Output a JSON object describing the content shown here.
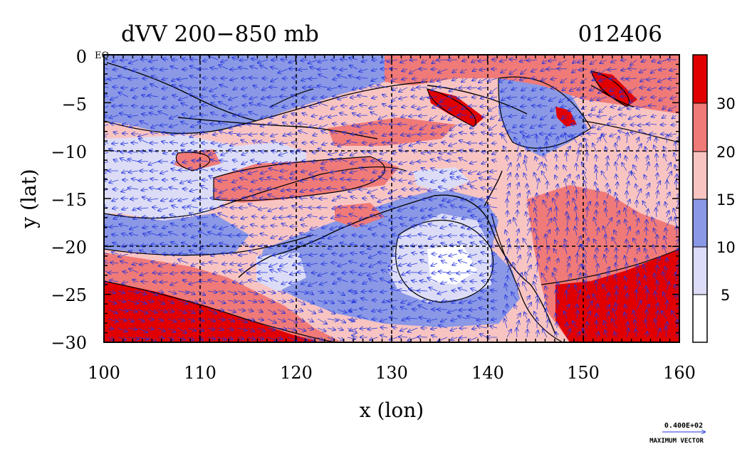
{
  "title": {
    "left": "dVV 200−850 mb",
    "right": "012406"
  },
  "axes": {
    "x_label": "x (lon)",
    "y_label": "y (lat)",
    "x_ticks": [
      "100",
      "110",
      "120",
      "130",
      "140",
      "150",
      "160"
    ],
    "y_ticks": [
      "0",
      "−5",
      "−10",
      "−15",
      "−20",
      "−25",
      "−30"
    ],
    "x_range": [
      100,
      160
    ],
    "y_range": [
      -30,
      0
    ]
  },
  "corner_label": "EQ",
  "colorbar": {
    "labels": [
      "30",
      "20",
      "15",
      "10",
      "5"
    ],
    "colors": [
      "#e00000",
      "#f07a78",
      "#f8c4c2",
      "#8a98e6",
      "#dcdcf6",
      "#ffffff"
    ]
  },
  "vector_key": {
    "value": "0.400E+02",
    "caption": "MAXIMUM VECTOR"
  },
  "colors": {
    "vector": "#2233dd",
    "contour": "#000000",
    "grid": "#000000"
  }
}
